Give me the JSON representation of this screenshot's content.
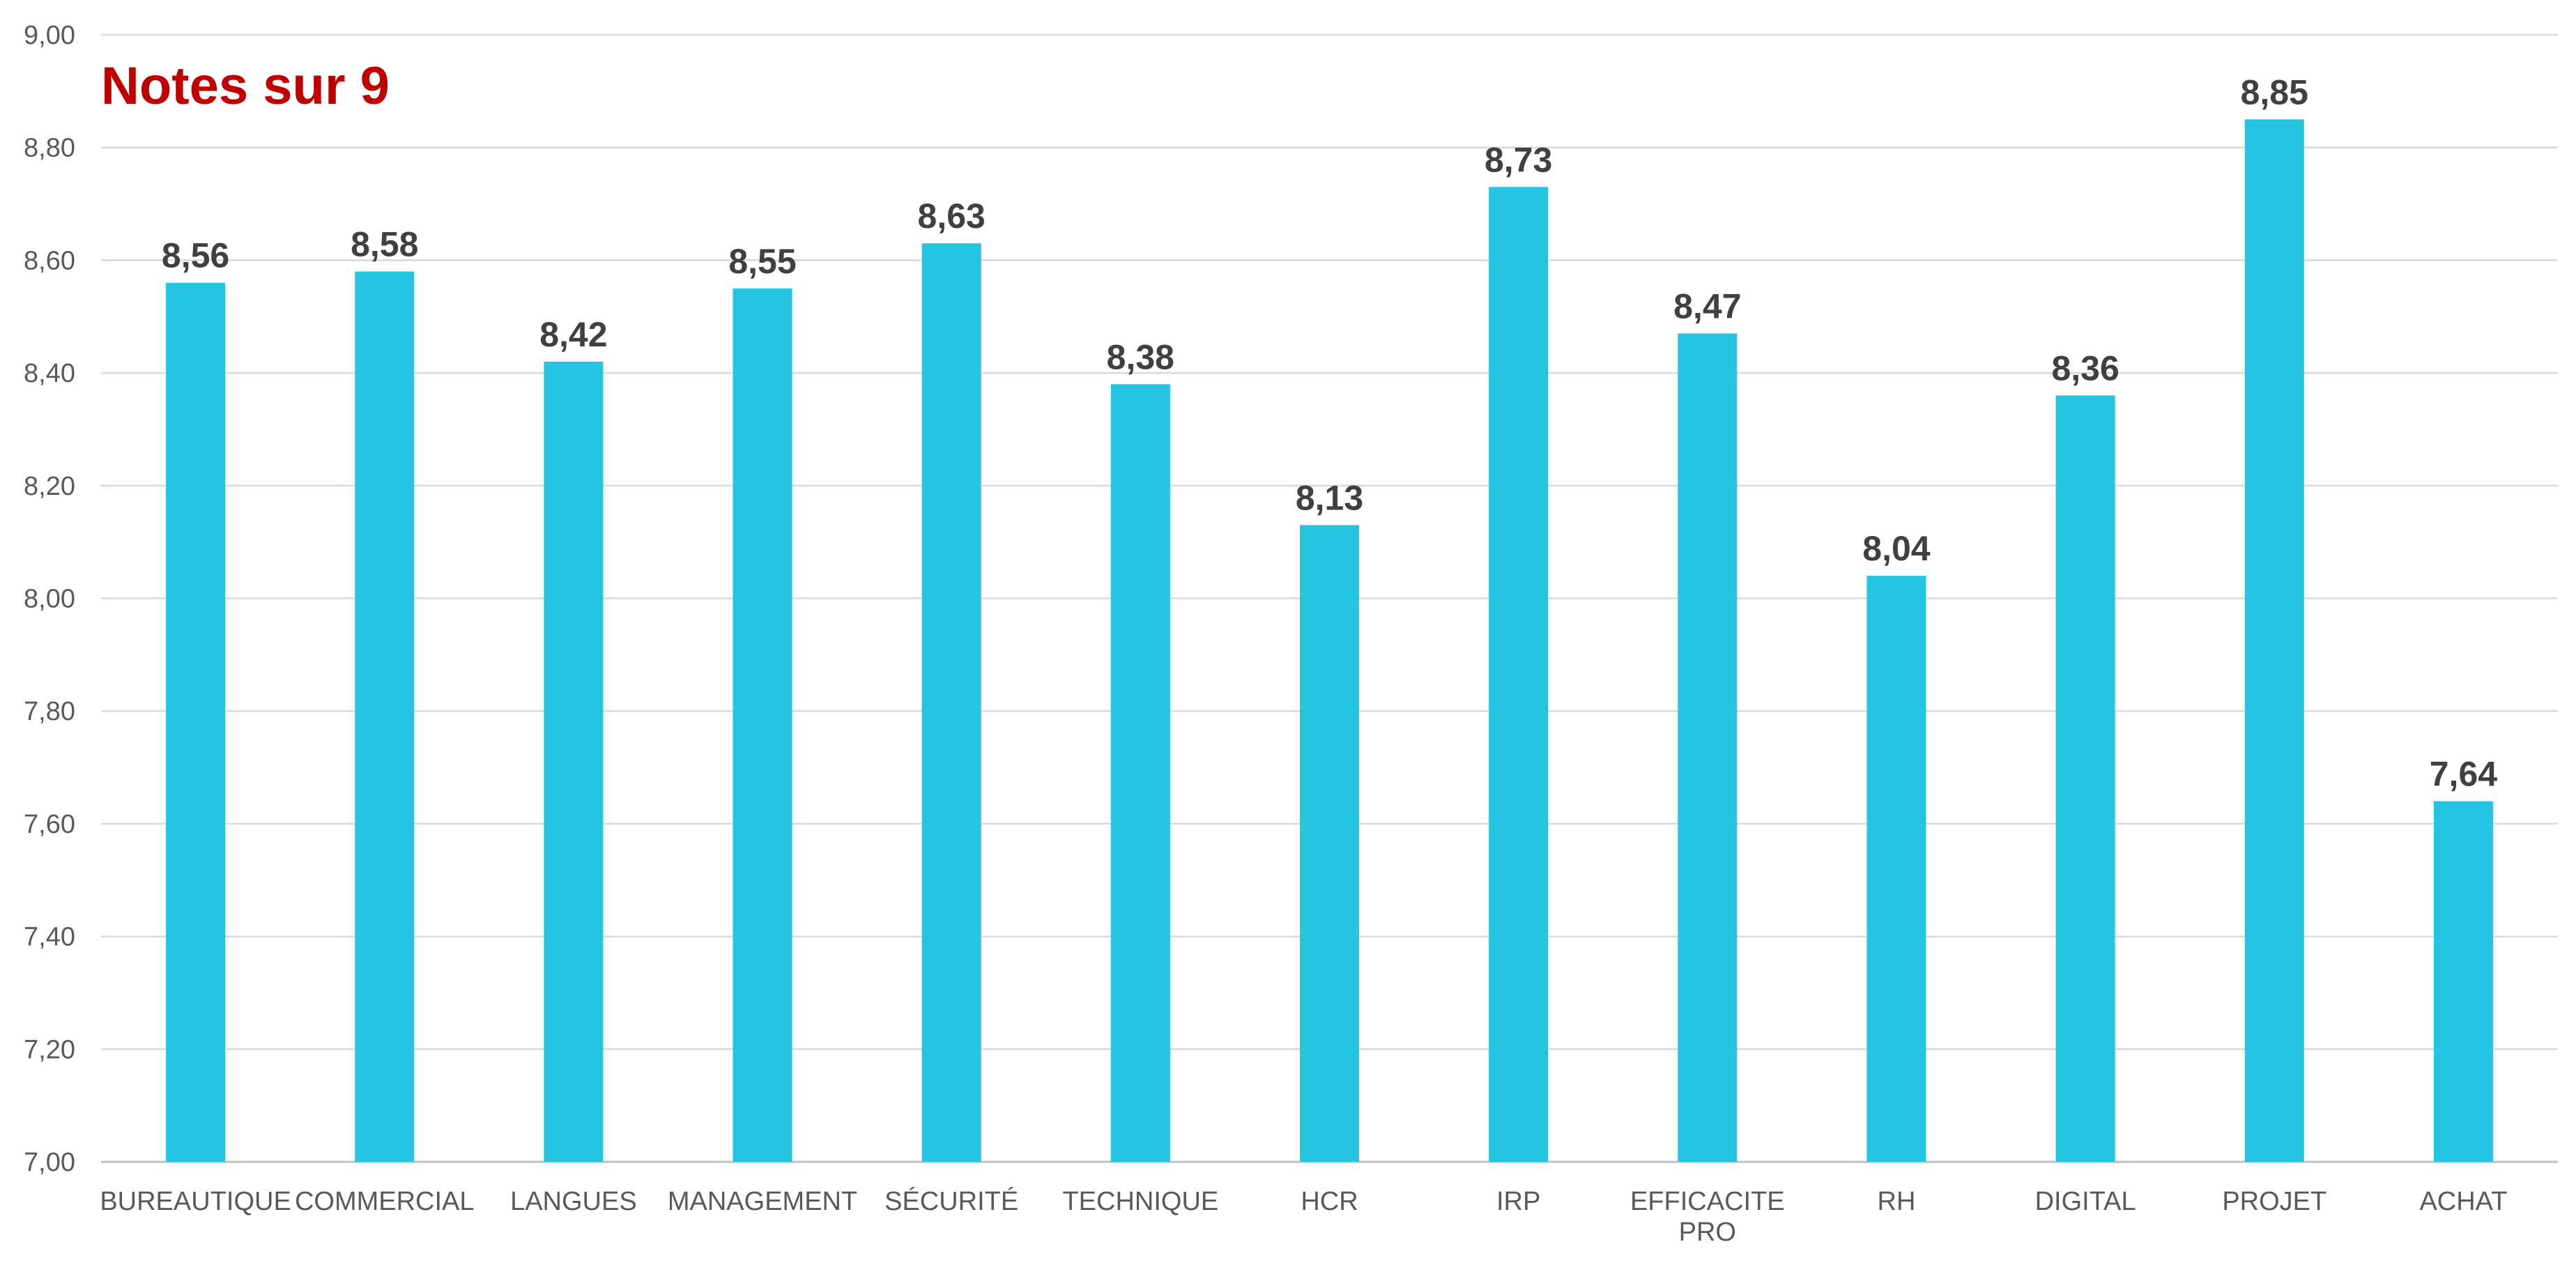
{
  "chart_data": {
    "type": "bar",
    "title": "Notes sur 9",
    "xlabel": "",
    "ylabel": "",
    "ylim": [
      7.0,
      9.0
    ],
    "yticks": [
      "7,00",
      "7,20",
      "7,40",
      "7,60",
      "7,80",
      "8,00",
      "8,20",
      "8,40",
      "8,60",
      "8,80",
      "9,00"
    ],
    "grid": true,
    "categories": [
      [
        "BUREAUTIQUE"
      ],
      [
        "COMMERCIAL"
      ],
      [
        "LANGUES"
      ],
      [
        "MANAGEMENT"
      ],
      [
        "SÉCURITÉ"
      ],
      [
        "TECHNIQUE"
      ],
      [
        "HCR"
      ],
      [
        "IRP"
      ],
      [
        "EFFICACITE",
        "PRO"
      ],
      [
        "RH"
      ],
      [
        "DIGITAL"
      ],
      [
        "PROJET"
      ],
      [
        "ACHAT"
      ]
    ],
    "values": [
      8.56,
      8.58,
      8.42,
      8.55,
      8.63,
      8.38,
      8.13,
      8.73,
      8.47,
      8.04,
      8.36,
      8.85,
      7.64
    ],
    "data_labels": [
      "8,56",
      "8,58",
      "8,42",
      "8,55",
      "8,63",
      "8,38",
      "8,13",
      "8,73",
      "8,47",
      "8,04",
      "8,36",
      "8,85",
      "7,64"
    ],
    "colors": {
      "bar": "#25c4e3",
      "grid": "#d9d9d9",
      "axis": "#bfbfbf",
      "title": "#c00000"
    }
  }
}
